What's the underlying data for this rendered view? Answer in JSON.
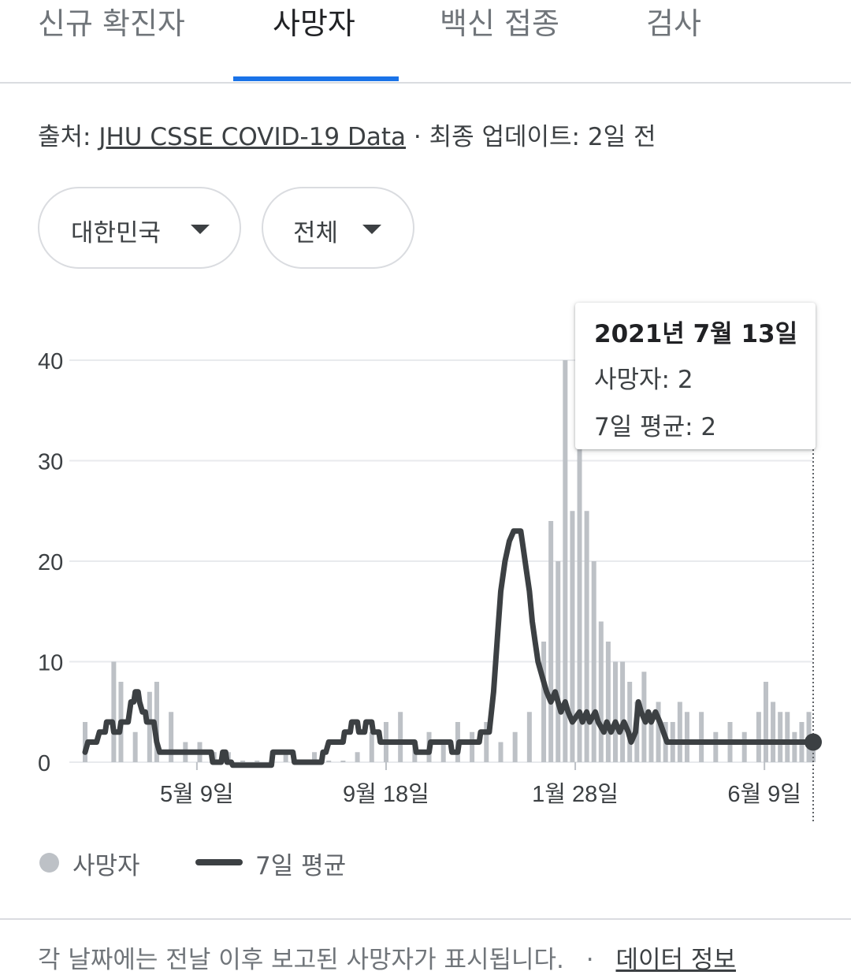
{
  "tabs": [
    {
      "label": "신규 확진자",
      "active": false
    },
    {
      "label": "사망자",
      "active": true
    },
    {
      "label": "백신 접종",
      "active": false
    },
    {
      "label": "검사",
      "active": false
    }
  ],
  "source": {
    "prefix": "출처: ",
    "link": "JHU CSSE COVID-19 Data",
    "suffix": " · 최종 업데이트: 2일 전"
  },
  "filters": {
    "region": "대한민국",
    "period": "전체"
  },
  "tooltip": {
    "date": "2021년 7월 13일",
    "deaths": "사망자: 2",
    "average": "7일 평균: 2"
  },
  "legend": {
    "daily": "사망자",
    "average": "7일 평균"
  },
  "footer": {
    "note": "각 날짜에는 전날 이후 보고된 사망자가 표시됩니다.",
    "separator": "·",
    "link": "데이터 정보"
  },
  "colors": {
    "accent": "#1a73e8",
    "bars": "#bdc1c6",
    "avg_line": "#3c4043",
    "grid": "#e8eaed"
  },
  "chart_data": {
    "type": "bar",
    "title": "",
    "xlabel": "",
    "ylabel": "",
    "ylim": [
      0,
      40
    ],
    "y_ticks": [
      0,
      10,
      20,
      30,
      40
    ],
    "x_ticks": [
      {
        "label": "5월 9일",
        "day": 88
      },
      {
        "label": "9월 18일",
        "day": 220
      },
      {
        "label": "1월 28일",
        "day": 352
      },
      {
        "label": "6월 9일",
        "day": 484
      }
    ],
    "x_range_days": [
      10,
      518
    ],
    "grid": true,
    "legend_position": "bottom-left",
    "series": [
      {
        "name": "사망자",
        "type": "bar",
        "points": [
          [
            10,
            4
          ],
          [
            30,
            10
          ],
          [
            35,
            8
          ],
          [
            45,
            3
          ],
          [
            55,
            7
          ],
          [
            60,
            8
          ],
          [
            70,
            5
          ],
          [
            80,
            2
          ],
          [
            90,
            2
          ],
          [
            100,
            1
          ],
          [
            110,
            1
          ],
          [
            120,
            0
          ],
          [
            130,
            0
          ],
          [
            140,
            0
          ],
          [
            150,
            1
          ],
          [
            160,
            0
          ],
          [
            170,
            1
          ],
          [
            180,
            0
          ],
          [
            190,
            0
          ],
          [
            200,
            1
          ],
          [
            210,
            3
          ],
          [
            220,
            4
          ],
          [
            230,
            5
          ],
          [
            240,
            2
          ],
          [
            250,
            3
          ],
          [
            260,
            2
          ],
          [
            270,
            4
          ],
          [
            280,
            3
          ],
          [
            290,
            4
          ],
          [
            300,
            2
          ],
          [
            310,
            3
          ],
          [
            320,
            5
          ],
          [
            330,
            12
          ],
          [
            335,
            24
          ],
          [
            340,
            20
          ],
          [
            345,
            40
          ],
          [
            350,
            25
          ],
          [
            355,
            35
          ],
          [
            360,
            25
          ],
          [
            365,
            20
          ],
          [
            370,
            14
          ],
          [
            375,
            12
          ],
          [
            380,
            10
          ],
          [
            385,
            10
          ],
          [
            390,
            8
          ],
          [
            395,
            6
          ],
          [
            400,
            9
          ],
          [
            405,
            5
          ],
          [
            410,
            6
          ],
          [
            415,
            4
          ],
          [
            420,
            4
          ],
          [
            425,
            6
          ],
          [
            430,
            5
          ],
          [
            440,
            5
          ],
          [
            450,
            3
          ],
          [
            460,
            4
          ],
          [
            470,
            3
          ],
          [
            480,
            5
          ],
          [
            485,
            8
          ],
          [
            490,
            6
          ],
          [
            495,
            5
          ],
          [
            500,
            5
          ],
          [
            505,
            3
          ],
          [
            510,
            4
          ],
          [
            515,
            5
          ],
          [
            518,
            2
          ]
        ]
      },
      {
        "name": "7일 평균",
        "type": "line",
        "points": [
          [
            10,
            1
          ],
          [
            12,
            2
          ],
          [
            18,
            2
          ],
          [
            20,
            3
          ],
          [
            24,
            3
          ],
          [
            25,
            4
          ],
          [
            29,
            4
          ],
          [
            30,
            3
          ],
          [
            34,
            3
          ],
          [
            35,
            4
          ],
          [
            40,
            4
          ],
          [
            41,
            5
          ],
          [
            42,
            6
          ],
          [
            44,
            6
          ],
          [
            45,
            7
          ],
          [
            47,
            7
          ],
          [
            48,
            6
          ],
          [
            50,
            5
          ],
          [
            52,
            5
          ],
          [
            53,
            4
          ],
          [
            58,
            4
          ],
          [
            59,
            3
          ],
          [
            60,
            2
          ],
          [
            62,
            1
          ],
          [
            98,
            1
          ],
          [
            99,
            0
          ],
          [
            105,
            0
          ],
          [
            106,
            1
          ],
          [
            108,
            1
          ],
          [
            109,
            0
          ],
          [
            112,
            0
          ],
          [
            113,
            -0.3
          ],
          [
            140,
            -0.3
          ],
          [
            141,
            1
          ],
          [
            155,
            1
          ],
          [
            156,
            0
          ],
          [
            175,
            0
          ],
          [
            176,
            1
          ],
          [
            178,
            1
          ],
          [
            180,
            2
          ],
          [
            190,
            2
          ],
          [
            191,
            3
          ],
          [
            195,
            3
          ],
          [
            196,
            4
          ],
          [
            200,
            4
          ],
          [
            201,
            3
          ],
          [
            205,
            3
          ],
          [
            206,
            4
          ],
          [
            210,
            4
          ],
          [
            211,
            3
          ],
          [
            215,
            3
          ],
          [
            216,
            2
          ],
          [
            240,
            2
          ],
          [
            241,
            1
          ],
          [
            250,
            1
          ],
          [
            251,
            2
          ],
          [
            265,
            2
          ],
          [
            266,
            1
          ],
          [
            270,
            1
          ],
          [
            271,
            2
          ],
          [
            285,
            2
          ],
          [
            286,
            3
          ],
          [
            292,
            3
          ],
          [
            295,
            7
          ],
          [
            298,
            13
          ],
          [
            300,
            17
          ],
          [
            303,
            20
          ],
          [
            306,
            22
          ],
          [
            309,
            23
          ],
          [
            314,
            23
          ],
          [
            316,
            21
          ],
          [
            318,
            19
          ],
          [
            320,
            17
          ],
          [
            322,
            14
          ],
          [
            324,
            12
          ],
          [
            326,
            10
          ],
          [
            328,
            9
          ],
          [
            330,
            8
          ],
          [
            332,
            7
          ],
          [
            335,
            6
          ],
          [
            338,
            7
          ],
          [
            340,
            6
          ],
          [
            342,
            5
          ],
          [
            345,
            6
          ],
          [
            347,
            5
          ],
          [
            350,
            4
          ],
          [
            355,
            5
          ],
          [
            357,
            4
          ],
          [
            360,
            5
          ],
          [
            362,
            4
          ],
          [
            366,
            5
          ],
          [
            368,
            4
          ],
          [
            372,
            3
          ],
          [
            374,
            4
          ],
          [
            377,
            3
          ],
          [
            380,
            4
          ],
          [
            383,
            3
          ],
          [
            386,
            4
          ],
          [
            389,
            3
          ],
          [
            391,
            2
          ],
          [
            394,
            3
          ],
          [
            396,
            6
          ],
          [
            398,
            5
          ],
          [
            401,
            4
          ],
          [
            403,
            5
          ],
          [
            405,
            4
          ],
          [
            408,
            5
          ],
          [
            411,
            4
          ],
          [
            416,
            2
          ],
          [
            430,
            2
          ],
          [
            518,
            2
          ]
        ]
      }
    ]
  }
}
